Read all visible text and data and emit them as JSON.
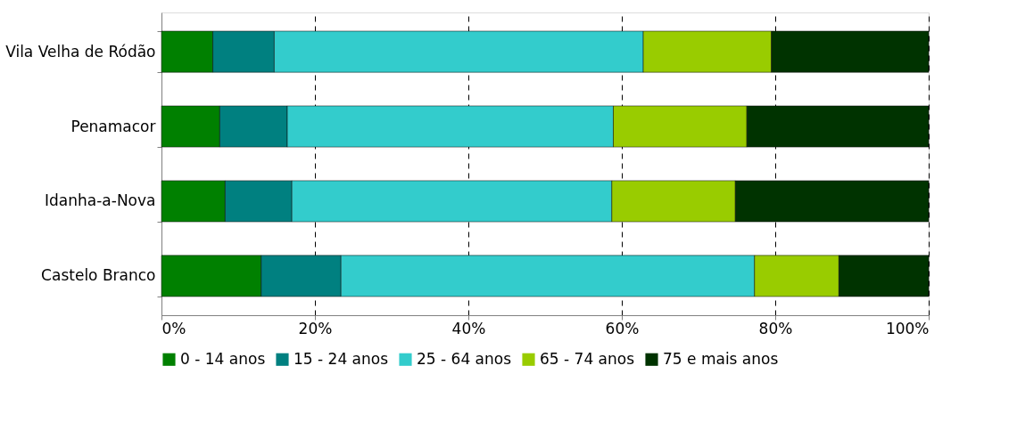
{
  "chart_data": {
    "type": "bar",
    "orientation": "horizontal",
    "stacked": true,
    "categories": [
      "Vila Velha de Ródão",
      "Penamacor",
      "Idanha-a-Nova",
      "Castelo Branco"
    ],
    "series": [
      {
        "name": "0 - 14 anos",
        "color": "#008000",
        "values": [
          6.7,
          7.6,
          8.3,
          13.0
        ]
      },
      {
        "name": "15 - 24 anos",
        "color": "#008080",
        "values": [
          8.0,
          8.8,
          8.7,
          10.4
        ]
      },
      {
        "name": "25 - 64 anos",
        "color": "#33cccc",
        "values": [
          48.1,
          42.5,
          41.7,
          53.9
        ]
      },
      {
        "name": "65 - 74 anos",
        "color": "#99cc00",
        "values": [
          16.7,
          17.4,
          16.1,
          11.0
        ]
      },
      {
        "name": "75 e mais anos",
        "color": "#003300",
        "values": [
          20.5,
          23.7,
          25.2,
          11.7
        ]
      }
    ],
    "xlim": [
      0,
      100
    ],
    "xticks": [
      {
        "value": 0,
        "label": "0%"
      },
      {
        "value": 20,
        "label": "20%"
      },
      {
        "value": 40,
        "label": "40%"
      },
      {
        "value": 60,
        "label": "60%"
      },
      {
        "value": 80,
        "label": "80%"
      },
      {
        "value": 100,
        "label": "100%"
      }
    ],
    "grid": "x",
    "legend": "bottom"
  }
}
